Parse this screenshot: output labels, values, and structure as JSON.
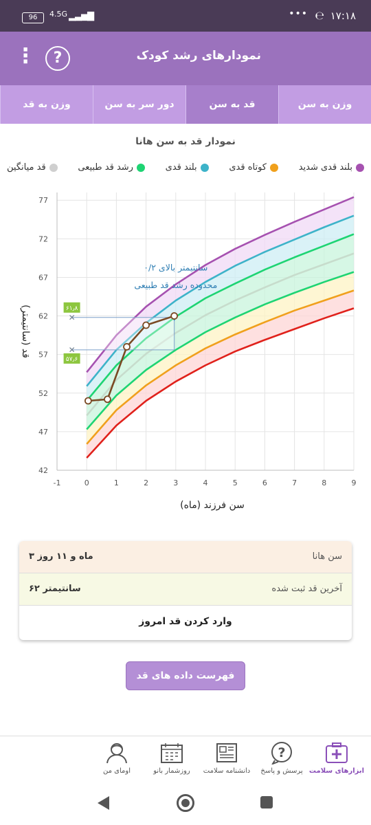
{
  "status_bar": {
    "time": "۱۷:۱۸",
    "battery": "96",
    "network": "4.5G"
  },
  "app_bar": {
    "title": "نمودارهای رشد کودک"
  },
  "tabs": [
    {
      "label": "وزن به سن",
      "active": false
    },
    {
      "label": "قد به سن",
      "active": true
    },
    {
      "label": "دور سر به سن",
      "active": false
    },
    {
      "label": "وزن به قد",
      "active": false
    }
  ],
  "chart_title": "نمودار قد به سن هانا",
  "legend": [
    {
      "label": "بلند قدی شدید",
      "color": "#a651b0"
    },
    {
      "label": "کوتاه قدی",
      "color": "#f0a01c"
    },
    {
      "label": "بلند قدی",
      "color": "#3db3c9"
    },
    {
      "label": "رشد قد طبیعی",
      "color": "#1ed473"
    },
    {
      "label": "قد میانگین",
      "color": "#cfcfcf"
    }
  ],
  "chart_data": {
    "type": "line",
    "xlabel": "سن فرزند (ماه)",
    "ylabel": "قد (سانتیمتر)",
    "xlim": [
      -1,
      9
    ],
    "ylim": [
      42,
      78
    ],
    "xticks": [
      -1,
      0,
      1,
      2,
      3,
      4,
      5,
      6,
      7,
      8,
      9
    ],
    "yticks": [
      42,
      47,
      52,
      57,
      62,
      67,
      72,
      77
    ],
    "x": [
      0,
      1,
      2,
      3,
      4,
      5,
      6,
      7,
      8,
      9
    ],
    "curves": [
      {
        "name": "red",
        "color": "#e0211b",
        "values": [
          43.6,
          47.8,
          51.0,
          53.5,
          55.6,
          57.4,
          58.9,
          60.3,
          61.7,
          63.0
        ]
      },
      {
        "name": "orange",
        "color": "#f0a01c",
        "values": [
          45.4,
          49.8,
          53.0,
          55.6,
          57.8,
          59.6,
          61.2,
          62.7,
          64.0,
          65.3
        ]
      },
      {
        "name": "green-low",
        "color": "#1ed473",
        "values": [
          47.3,
          51.7,
          55.0,
          57.6,
          59.9,
          61.8,
          63.5,
          65.0,
          66.4,
          67.7
        ]
      },
      {
        "name": "median",
        "color": "#c7dccc",
        "values": [
          49.1,
          53.7,
          57.1,
          59.8,
          62.1,
          64.0,
          65.7,
          67.3,
          68.7,
          70.1
        ]
      },
      {
        "name": "green-high",
        "color": "#1ed473",
        "values": [
          51.0,
          55.6,
          59.1,
          61.9,
          64.3,
          66.2,
          68.0,
          69.6,
          71.1,
          72.6
        ]
      },
      {
        "name": "blue",
        "color": "#3db3c9",
        "values": [
          52.9,
          57.6,
          61.1,
          64.0,
          66.4,
          68.5,
          70.3,
          71.9,
          73.5,
          75.0
        ]
      },
      {
        "name": "purple",
        "color": "#a651b0",
        "values": [
          54.7,
          59.5,
          63.2,
          66.1,
          68.6,
          70.7,
          72.5,
          74.2,
          75.8,
          77.4
        ]
      }
    ],
    "child_series": {
      "name": "هانا",
      "color": "#7a4a24",
      "points": [
        {
          "x": 0.05,
          "y": 51.0
        },
        {
          "x": 0.7,
          "y": 51.2
        },
        {
          "x": 1.35,
          "y": 58.0
        },
        {
          "x": 2.0,
          "y": 60.8
        },
        {
          "x": 2.95,
          "y": 62.0
        }
      ]
    },
    "range_markers": {
      "upper": "۶۱٫۸",
      "lower": "۵۷٫۶",
      "upper_value": 61.8,
      "lower_value": 57.6
    },
    "annotation": {
      "line1": "۰/۲ سانتیمتر بالای",
      "line2": "محدوده رشد قد طبیعی"
    }
  },
  "summary": {
    "age_label": "سن هانا",
    "age_value": "۳ ماه و ۱۱ روز",
    "height_label": "آخرین قد ثبت شده",
    "height_value": "۶۲ سانتیمتر",
    "enter_action": "وارد کردن قد امروز"
  },
  "list_button": "فهرست داده های قد هانا",
  "bottom_nav": [
    {
      "label": "ابزارهای سلامت",
      "icon": "medical-kit-icon",
      "active": true
    },
    {
      "label": "پرسش و پاسخ",
      "icon": "question-bubble-icon",
      "active": false
    },
    {
      "label": "دانشنامه سلامت",
      "icon": "newspaper-icon",
      "active": false
    },
    {
      "label": "روزشمار بانو",
      "icon": "calendar-icon",
      "active": false
    },
    {
      "label": "اومای من",
      "icon": "user-avatar-icon",
      "active": false
    }
  ]
}
